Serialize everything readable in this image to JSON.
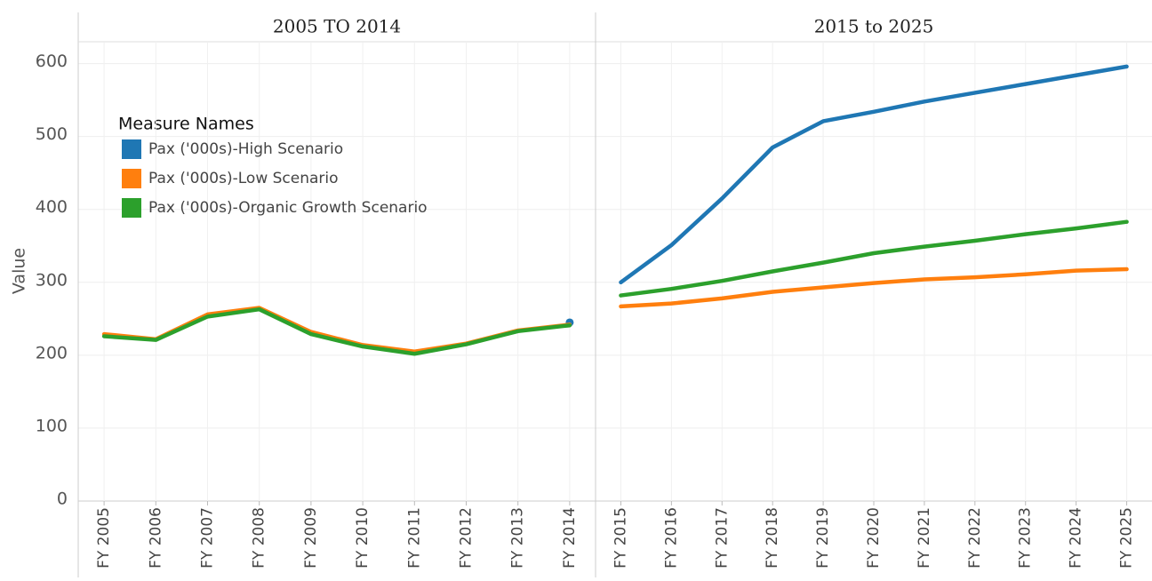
{
  "chart_data": {
    "type": "line",
    "ylabel": "Value",
    "ylim": [
      0,
      630
    ],
    "yticks": [
      0,
      100,
      200,
      300,
      400,
      500,
      600
    ],
    "grid": true,
    "legend_title": "Measure Names",
    "legend": "upper left",
    "panels": [
      {
        "title": "2005 TO 2014",
        "categories": [
          "FY 2005",
          "FY 2006",
          "FY 2007",
          "FY 2008",
          "FY 2009",
          "FY 2010",
          "FY 2011",
          "FY 2012",
          "FY 2013",
          "FY 2014"
        ]
      },
      {
        "title": "2015 to 2025",
        "categories": [
          "FY 2015",
          "FY 2016",
          "FY 2017",
          "FY 2018",
          "FY 2019",
          "FY 2020",
          "FY 2021",
          "FY 2022",
          "FY 2023",
          "FY 2024",
          "FY 2025"
        ]
      }
    ],
    "series": [
      {
        "name": "Pax ('000s)-High Scenario",
        "color": "#1f77b4",
        "values": [
          null,
          null,
          null,
          null,
          null,
          null,
          null,
          null,
          null,
          245,
          300,
          351,
          415,
          485,
          521,
          534,
          548,
          560,
          572,
          584,
          596
        ]
      },
      {
        "name": "Pax ('000s)-Low Scenario",
        "color": "#ff7f0e",
        "values": [
          229,
          222,
          256,
          265,
          232,
          214,
          205,
          216,
          234,
          242,
          267,
          271,
          278,
          287,
          293,
          299,
          304,
          307,
          311,
          316,
          318
        ]
      },
      {
        "name": "Pax ('000s)-Organic Growth Scenario",
        "color": "#2ca02c",
        "values": [
          226,
          221,
          253,
          263,
          229,
          212,
          202,
          215,
          233,
          241,
          282,
          291,
          302,
          315,
          327,
          340,
          349,
          357,
          366,
          374,
          383
        ]
      }
    ]
  }
}
